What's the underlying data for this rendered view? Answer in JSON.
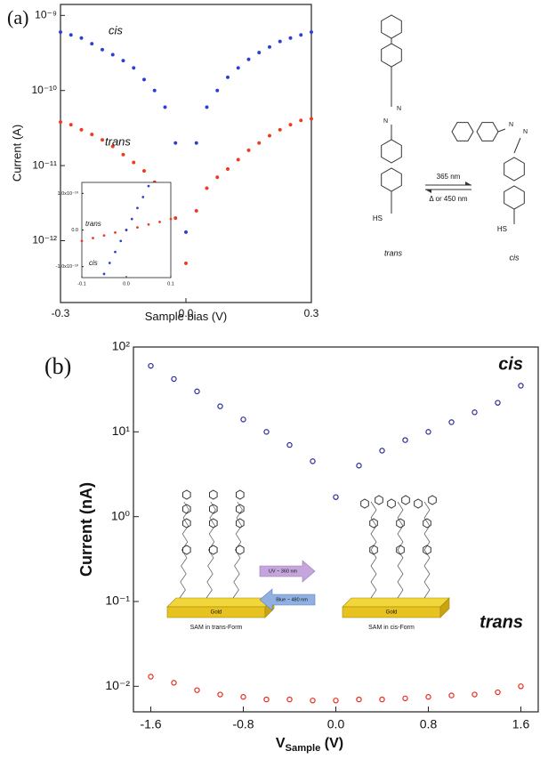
{
  "chart_data": [
    {
      "type": "scatter",
      "panel_label": "(a)",
      "x_label": "Sample bias (V)",
      "y_label": "Current (A)",
      "log_y": true,
      "xlim": [
        -0.3,
        0.3
      ],
      "ylim": [
        1.5e-13,
        1.4e-09
      ],
      "xticks": [
        -0.3,
        {
          "value": 0,
          "label": "0.0"
        },
        0.3
      ],
      "yticks": [
        {
          "value": 1e-09,
          "label": "10⁻⁹"
        },
        {
          "value": 1e-10,
          "label": "10⁻¹⁰"
        },
        {
          "value": 1e-11,
          "label": "10⁻¹¹"
        },
        {
          "value": 1e-12,
          "label": "10⁻¹²"
        }
      ],
      "series": [
        {
          "name": "cis",
          "color": "#2b3fd4",
          "x": [
            -0.3,
            -0.275,
            -0.25,
            -0.225,
            -0.2,
            -0.175,
            -0.15,
            -0.125,
            -0.1,
            -0.075,
            -0.05,
            -0.025,
            0,
            0.025,
            0.05,
            0.075,
            0.1,
            0.125,
            0.15,
            0.175,
            0.2,
            0.225,
            0.25,
            0.275,
            0.3
          ],
          "values": [
            6e-10,
            5.5e-10,
            5e-10,
            4.2e-10,
            3.5e-10,
            3e-10,
            2.5e-10,
            2e-10,
            1.4e-10,
            1e-10,
            6e-11,
            2e-11,
            1.3e-12,
            2e-11,
            6e-11,
            1e-10,
            1.5e-10,
            2e-10,
            2.6e-10,
            3.2e-10,
            3.8e-10,
            4.5e-10,
            5e-10,
            5.5e-10,
            6e-10
          ]
        },
        {
          "name": "trans",
          "color": "#f03a1e",
          "x": [
            -0.3,
            -0.275,
            -0.25,
            -0.225,
            -0.2,
            -0.175,
            -0.15,
            -0.125,
            -0.1,
            -0.075,
            -0.05,
            -0.025,
            0,
            0.025,
            0.05,
            0.075,
            0.1,
            0.125,
            0.15,
            0.175,
            0.2,
            0.225,
            0.25,
            0.275,
            0.3
          ],
          "values": [
            3.8e-11,
            3.5e-11,
            3e-11,
            2.6e-11,
            2.2e-11,
            1.8e-11,
            1.4e-11,
            1.1e-11,
            8.5e-12,
            6e-12,
            4e-12,
            2e-12,
            5e-13,
            2.5e-12,
            5e-12,
            7e-12,
            9e-12,
            1.2e-11,
            1.6e-11,
            2e-11,
            2.5e-11,
            3e-11,
            3.5e-11,
            4e-11,
            4.2e-11
          ]
        }
      ]
    },
    {
      "type": "scatter",
      "log_y": false,
      "xlim": [
        -0.1,
        0.1
      ],
      "ylim": [
        -1.3e-10,
        1.3e-10
      ],
      "xticks": [
        -0.1,
        {
          "value": 0,
          "label": "0.0"
        },
        0.1
      ],
      "yticks": [
        {
          "value": 1e-10,
          "label": "1.0x10⁻¹⁰"
        },
        {
          "value": 0,
          "label": "0.0"
        },
        {
          "value": -1e-10,
          "label": "-1.0x10⁻¹⁰"
        }
      ],
      "series": [
        {
          "name": "trans",
          "color": "#f03a1e",
          "x": [
            -0.1,
            -0.075,
            -0.05,
            -0.025,
            0,
            0.025,
            0.05,
            0.075,
            0.1
          ],
          "values": [
            -3e-11,
            -2.2e-11,
            -1.5e-11,
            -7e-12,
            0,
            7e-12,
            1.5e-11,
            2.2e-11,
            3e-11
          ]
        },
        {
          "name": "cis",
          "color": "#2b3fd4",
          "x": [
            -0.05,
            -0.0375,
            -0.025,
            -0.0125,
            0,
            0.0125,
            0.025,
            0.0375,
            0.05
          ],
          "values": [
            -1.2e-10,
            -9e-11,
            -6e-11,
            -3e-11,
            0,
            3e-11,
            6e-11,
            9e-11,
            1.2e-10
          ]
        }
      ]
    },
    {
      "type": "scatter",
      "panel_label": "(b)",
      "x_label": "V",
      "x_label_sub": "Sample",
      "x_label_unit": " (V)",
      "y_label": "Current (nA)",
      "log_y": true,
      "xlim": [
        -1.75,
        1.75
      ],
      "ylim": [
        0.005,
        100
      ],
      "xticks": [
        -1.6,
        -0.8,
        {
          "value": 0,
          "label": "0.0"
        },
        0.8,
        1.6
      ],
      "yticks": [
        {
          "value": 100,
          "label": "10²"
        },
        {
          "value": 10,
          "label": "10¹"
        },
        {
          "value": 1,
          "label": "10⁰"
        },
        {
          "value": 0.1,
          "label": "10⁻¹"
        },
        {
          "value": 0.01,
          "label": "10⁻²"
        }
      ],
      "series": [
        {
          "name": "cis",
          "color": "#2a2a9a",
          "x": [
            -1.6,
            -1.4,
            -1.2,
            -1.0,
            -0.8,
            -0.6,
            -0.4,
            -0.2,
            0,
            0.2,
            0.4,
            0.6,
            0.8,
            1.0,
            1.2,
            1.4,
            1.6
          ],
          "values": [
            60,
            42,
            30,
            20,
            14,
            10,
            7,
            4.5,
            1.7,
            4,
            6,
            8,
            10,
            13,
            17,
            22,
            35
          ]
        },
        {
          "name": "trans",
          "color": "#e8281e",
          "x": [
            -1.6,
            -1.4,
            -1.2,
            -1.0,
            -0.8,
            -0.6,
            -0.4,
            -0.2,
            0,
            0.2,
            0.4,
            0.6,
            0.8,
            1.0,
            1.2,
            1.4,
            1.6
          ],
          "values": [
            0.013,
            0.011,
            0.009,
            0.008,
            0.0075,
            0.007,
            0.007,
            0.0068,
            0.0068,
            0.007,
            0.007,
            0.0072,
            0.0075,
            0.0078,
            0.008,
            0.0085,
            0.01
          ]
        }
      ]
    }
  ],
  "scheme_a": {
    "forward": "365 nm",
    "reverse": "Δ or 450 nm",
    "left_label": "trans",
    "right_label": "cis",
    "thiol": [
      "HS",
      "HS"
    ],
    "azo": [
      "N",
      "N",
      "N",
      "N"
    ]
  },
  "scheme_b": {
    "substrate": [
      "Gold",
      "Gold"
    ],
    "left_caption": "SAM in trans-Form",
    "right_caption": "SAM in cis-Form",
    "uv": "UV ~ 360 nm",
    "blue": "Blue ~ 480 nm"
  }
}
